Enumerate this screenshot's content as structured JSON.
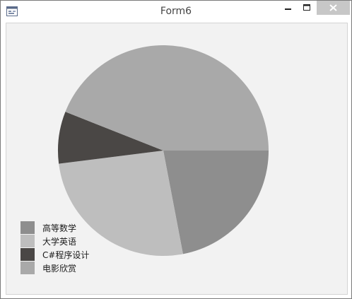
{
  "window": {
    "title": "Form6",
    "app_icon": "form-icon",
    "controls": [
      "minimize-icon",
      "maximize-icon",
      "close-icon"
    ]
  },
  "chart_data": {
    "type": "pie",
    "title": "",
    "categories": [
      "高等数学",
      "大学英语",
      "C#程序设计",
      "电影欣赏"
    ],
    "values": [
      22,
      26,
      8,
      44
    ],
    "colors": [
      "#8e8e8e",
      "#bebebe",
      "#4a4745",
      "#a9a9a9"
    ],
    "start_angle_deg": 0,
    "direction": "clockwise",
    "legend_position": "bottom-left"
  }
}
